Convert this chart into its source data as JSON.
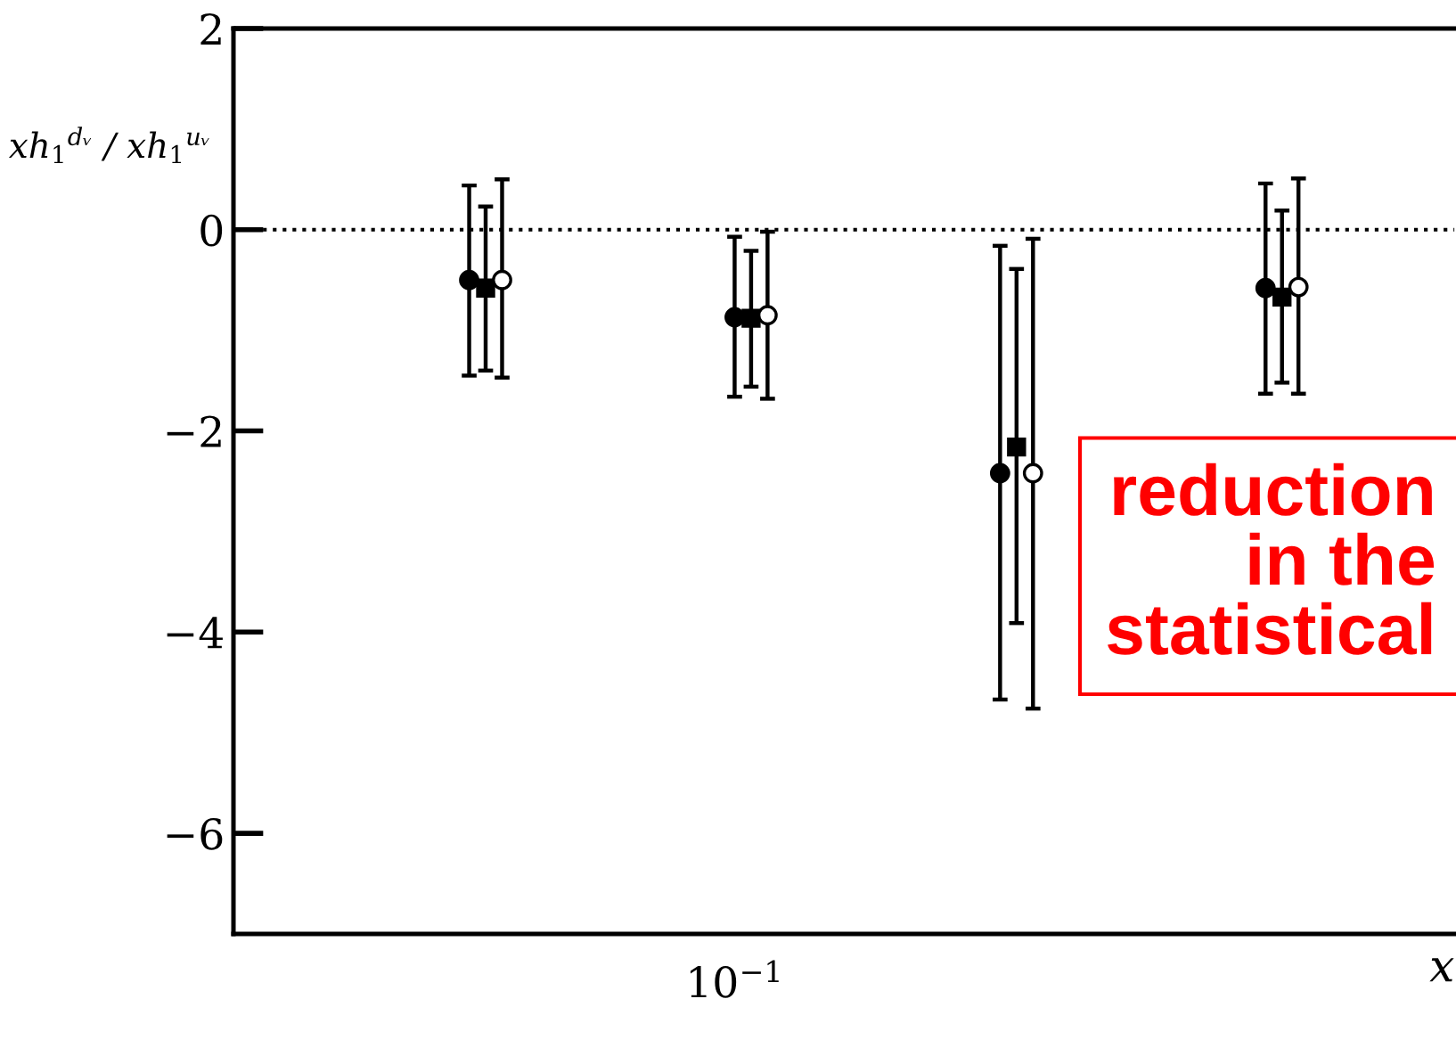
{
  "chart_data": {
    "type": "scatter",
    "ylabel": "xh$_{1}$$^{dᵥ}$ / xh$_{1}$$^{uᵥ}$",
    "xlabel": "x",
    "categories": [
      null,
      null,
      null,
      null
    ],
    "ylim": [
      -7,
      2
    ],
    "yticks": [
      {
        "value": 2,
        "label": "2"
      },
      {
        "value": 0,
        "label": "0"
      },
      {
        "value": -2,
        "label": "−2"
      },
      {
        "value": -4,
        "label": "−4"
      },
      {
        "value": -6,
        "label": "−6"
      }
    ],
    "grid": false,
    "ref_lines": [
      {
        "axis": "y",
        "value": 0,
        "line_style": "dotted",
        "color": "#000000"
      }
    ],
    "series": [
      {
        "color": "#000000",
        "marker": "circle",
        "values": [
          -0.5,
          -0.87,
          -2.42,
          -0.58
        ],
        "errors": [
          [
            -1.45,
            0.44
          ],
          [
            -1.66,
            -0.07
          ],
          [
            -4.67,
            -0.16
          ],
          [
            -1.63,
            0.46
          ]
        ]
      },
      {
        "color": "#000000",
        "marker": "square",
        "values": [
          -0.58,
          -0.88,
          -2.16,
          -0.67
        ],
        "errors": [
          [
            -1.4,
            0.23
          ],
          [
            -1.56,
            -0.21
          ],
          [
            -3.91,
            -0.39
          ],
          [
            -1.52,
            0.19
          ]
        ]
      },
      {
        "color": "#ffffff",
        "marker": "circle",
        "values": [
          -0.5,
          -0.85,
          -2.42,
          -0.57
        ],
        "errors": [
          [
            -1.47,
            0.5
          ],
          [
            -1.68,
            -0.02
          ],
          [
            -4.76,
            -0.09
          ],
          [
            -1.63,
            0.51
          ]
        ]
      }
    ],
    "annotations": [
      "10$^{−1}$",
      "reduction\nin the\nstatistical"
    ]
  }
}
